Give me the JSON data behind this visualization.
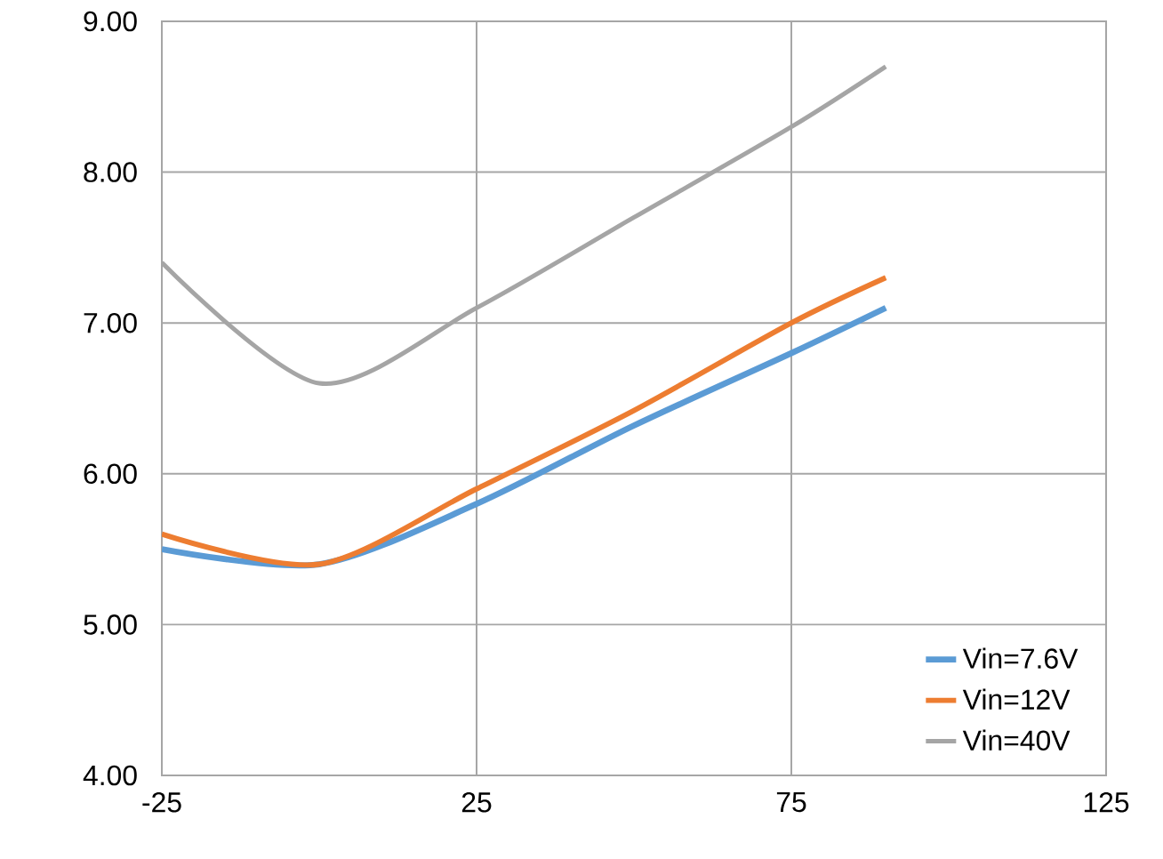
{
  "chart_data": {
    "type": "line",
    "x": [
      -25,
      0,
      25,
      50,
      75,
      90
    ],
    "series": [
      {
        "name": "Vin=7.6V",
        "color": "#5b9bd5",
        "values": [
          5.5,
          5.4,
          5.8,
          6.32,
          6.8,
          7.1
        ]
      },
      {
        "name": "Vin=12V",
        "color": "#ed7d31",
        "values": [
          5.6,
          5.4,
          5.9,
          6.42,
          7.0,
          7.3
        ]
      },
      {
        "name": "Vin=40V",
        "color": "#a5a5a5",
        "values": [
          7.4,
          6.6,
          7.1,
          7.7,
          8.3,
          8.7
        ]
      }
    ],
    "xlim": [
      -25,
      125
    ],
    "xticks": [
      -25,
      25,
      75,
      125
    ],
    "ylim": [
      4,
      9
    ],
    "yticks": [
      {
        "value": 4,
        "label": "4.00"
      },
      {
        "value": 5,
        "label": "5.00"
      },
      {
        "value": 6,
        "label": "6.00"
      },
      {
        "value": 7,
        "label": "7.00"
      },
      {
        "value": 8,
        "label": "8.00"
      },
      {
        "value": 9,
        "label": "9.00"
      }
    ],
    "grid": true,
    "legend": "bottom right",
    "marker": "none",
    "line_style": "solid"
  }
}
